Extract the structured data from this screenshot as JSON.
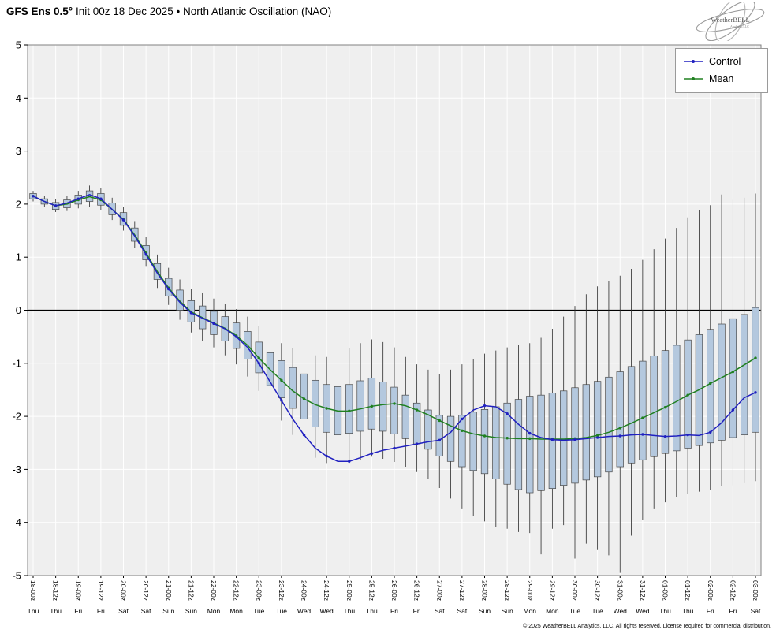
{
  "header": {
    "title_bold": "GFS Ens 0.5°",
    "title_rest": " Init 00z 18 Dec 2025 • North Atlantic Oscillation (NAO)",
    "logo_text": "WeatherBELL",
    "logo_sub": "Analytics LLC"
  },
  "legend": {
    "control_label": "Control",
    "mean_label": "Mean"
  },
  "footer": {
    "copyright": "© 2025 WeatherBELL Analytics, LLC. All rights reserved. License required for commercial distribution."
  },
  "colors": {
    "control": "#2020c0",
    "mean": "#208020",
    "box_fill": "#b4c8de",
    "box_edge": "#4a4a4a",
    "whisker": "#2a2a2a",
    "plot_bg": "#efefef",
    "grid": "#ffffff",
    "zero_line": "#000000",
    "axis_border": "#808080"
  },
  "chart_data": {
    "type": "line+boxplot",
    "title": "GFS Ens 0.5° Init 00z 18 Dec 2025 • North Atlantic Oscillation (NAO)",
    "ylabel": "",
    "ylim": [
      -5,
      5
    ],
    "yticks": [
      5,
      4,
      3,
      2,
      1,
      0,
      -1,
      -2,
      -3,
      -4,
      -5
    ],
    "grid": true,
    "legend_position": "upper right",
    "x_step_hours": 6,
    "x_tick_labels": [
      "18-00z",
      "18-12z",
      "19-00z",
      "19-12z",
      "20-00z",
      "20-12z",
      "21-00z",
      "21-12z",
      "22-00z",
      "22-12z",
      "23-00z",
      "23-12z",
      "24-00z",
      "24-12z",
      "25-00z",
      "25-12z",
      "26-00z",
      "26-12z",
      "27-00z",
      "27-12z",
      "28-00z",
      "28-12z",
      "29-00z",
      "29-12z",
      "30-00z",
      "30-12z",
      "31-00z",
      "31-12z",
      "01-00z",
      "01-12z",
      "02-00z",
      "02-12z",
      "03-00z"
    ],
    "x_day_labels": [
      "Thu",
      "Thu",
      "Fri",
      "Fri",
      "Sat",
      "Sat",
      "Sun",
      "Sun",
      "Mon",
      "Mon",
      "Tue",
      "Tue",
      "Wed",
      "Wed",
      "Thu",
      "Thu",
      "Fri",
      "Fri",
      "Sat",
      "Sat",
      "Sun",
      "Sun",
      "Mon",
      "Mon",
      "Tue",
      "Tue",
      "Wed",
      "Wed",
      "Thu",
      "Thu",
      "Fri",
      "Fri",
      "Sat"
    ],
    "series": [
      {
        "name": "Control",
        "values": [
          2.15,
          2.05,
          1.97,
          2.02,
          2.1,
          2.18,
          2.1,
          1.9,
          1.7,
          1.4,
          1.05,
          0.7,
          0.4,
          0.15,
          -0.05,
          -0.15,
          -0.25,
          -0.35,
          -0.5,
          -0.7,
          -1.0,
          -1.35,
          -1.7,
          -2.05,
          -2.35,
          -2.6,
          -2.75,
          -2.85,
          -2.85,
          -2.78,
          -2.7,
          -2.64,
          -2.6,
          -2.56,
          -2.52,
          -2.48,
          -2.45,
          -2.3,
          -2.05,
          -1.88,
          -1.8,
          -1.82,
          -1.95,
          -2.15,
          -2.32,
          -2.4,
          -2.44,
          -2.45,
          -2.44,
          -2.42,
          -2.4,
          -2.38,
          -2.37,
          -2.35,
          -2.34,
          -2.36,
          -2.38,
          -2.37,
          -2.35,
          -2.36,
          -2.3,
          -2.12,
          -1.88,
          -1.65,
          -1.55
        ]
      },
      {
        "name": "Mean",
        "values": [
          2.15,
          2.05,
          1.97,
          2.0,
          2.08,
          2.14,
          2.08,
          1.9,
          1.71,
          1.42,
          1.08,
          0.73,
          0.42,
          0.17,
          -0.03,
          -0.14,
          -0.24,
          -0.34,
          -0.48,
          -0.66,
          -0.9,
          -1.12,
          -1.32,
          -1.52,
          -1.67,
          -1.78,
          -1.85,
          -1.9,
          -1.9,
          -1.86,
          -1.81,
          -1.78,
          -1.76,
          -1.8,
          -1.88,
          -1.97,
          -2.08,
          -2.18,
          -2.27,
          -2.33,
          -2.37,
          -2.4,
          -2.41,
          -2.42,
          -2.42,
          -2.43,
          -2.43,
          -2.43,
          -2.42,
          -2.4,
          -2.36,
          -2.3,
          -2.22,
          -2.13,
          -2.03,
          -1.93,
          -1.83,
          -1.72,
          -1.6,
          -1.5,
          -1.38,
          -1.27,
          -1.16,
          -1.03,
          -0.9
        ]
      }
    ],
    "boxes": {
      "q1": [
        2.1,
        2.0,
        1.9,
        1.93,
        2.0,
        2.05,
        1.98,
        1.8,
        1.6,
        1.3,
        0.95,
        0.58,
        0.27,
        0.0,
        -0.22,
        -0.35,
        -0.46,
        -0.58,
        -0.72,
        -0.92,
        -1.18,
        -1.42,
        -1.65,
        -1.85,
        -2.05,
        -2.2,
        -2.3,
        -2.35,
        -2.32,
        -2.28,
        -2.24,
        -2.28,
        -2.33,
        -2.42,
        -2.52,
        -2.62,
        -2.75,
        -2.85,
        -2.95,
        -3.02,
        -3.08,
        -3.18,
        -3.28,
        -3.38,
        -3.44,
        -3.4,
        -3.36,
        -3.3,
        -3.26,
        -3.2,
        -3.14,
        -3.05,
        -2.95,
        -2.88,
        -2.82,
        -2.76,
        -2.7,
        -2.65,
        -2.6,
        -2.55,
        -2.5,
        -2.45,
        -2.4,
        -2.35,
        -2.3
      ],
      "q3": [
        2.2,
        2.1,
        2.03,
        2.08,
        2.17,
        2.25,
        2.2,
        2.02,
        1.84,
        1.55,
        1.22,
        0.88,
        0.6,
        0.38,
        0.18,
        0.08,
        -0.02,
        -0.12,
        -0.24,
        -0.4,
        -0.6,
        -0.8,
        -0.95,
        -1.08,
        -1.2,
        -1.32,
        -1.4,
        -1.44,
        -1.4,
        -1.33,
        -1.28,
        -1.35,
        -1.45,
        -1.6,
        -1.75,
        -1.88,
        -1.98,
        -2.0,
        -1.98,
        -1.92,
        -1.87,
        -1.82,
        -1.75,
        -1.68,
        -1.62,
        -1.6,
        -1.56,
        -1.52,
        -1.46,
        -1.4,
        -1.34,
        -1.26,
        -1.16,
        -1.06,
        -0.96,
        -0.86,
        -0.76,
        -0.66,
        -0.56,
        -0.46,
        -0.36,
        -0.26,
        -0.16,
        -0.08,
        0.05
      ],
      "lo": [
        2.05,
        1.95,
        1.85,
        1.87,
        1.92,
        1.95,
        1.88,
        1.7,
        1.5,
        1.18,
        0.82,
        0.42,
        0.1,
        -0.18,
        -0.42,
        -0.58,
        -0.7,
        -0.85,
        -1.02,
        -1.25,
        -1.52,
        -1.8,
        -2.08,
        -2.35,
        -2.6,
        -2.78,
        -2.88,
        -2.92,
        -2.88,
        -2.82,
        -2.76,
        -2.8,
        -2.86,
        -2.95,
        -3.05,
        -3.18,
        -3.35,
        -3.55,
        -3.75,
        -3.88,
        -3.98,
        -4.08,
        -4.12,
        -4.18,
        -4.2,
        -4.6,
        -4.12,
        -4.05,
        -4.68,
        -4.4,
        -4.52,
        -4.62,
        -4.95,
        -4.25,
        -3.95,
        -3.75,
        -3.62,
        -3.52,
        -3.46,
        -3.42,
        -3.38,
        -3.32,
        -3.3,
        -3.26,
        -3.22
      ],
      "hi": [
        2.25,
        2.15,
        2.1,
        2.15,
        2.25,
        2.35,
        2.3,
        2.12,
        1.95,
        1.68,
        1.38,
        1.05,
        0.8,
        0.58,
        0.4,
        0.32,
        0.22,
        0.12,
        0.02,
        -0.12,
        -0.3,
        -0.48,
        -0.62,
        -0.72,
        -0.8,
        -0.85,
        -0.88,
        -0.85,
        -0.72,
        -0.62,
        -0.55,
        -0.6,
        -0.7,
        -0.88,
        -1.02,
        -1.12,
        -1.2,
        -1.12,
        -1.02,
        -0.92,
        -0.82,
        -0.76,
        -0.7,
        -0.66,
        -0.62,
        -0.52,
        -0.35,
        -0.12,
        0.08,
        0.3,
        0.45,
        0.55,
        0.65,
        0.78,
        0.95,
        1.15,
        1.35,
        1.55,
        1.75,
        1.88,
        1.98,
        2.18,
        2.08,
        2.12,
        2.2
      ]
    }
  }
}
